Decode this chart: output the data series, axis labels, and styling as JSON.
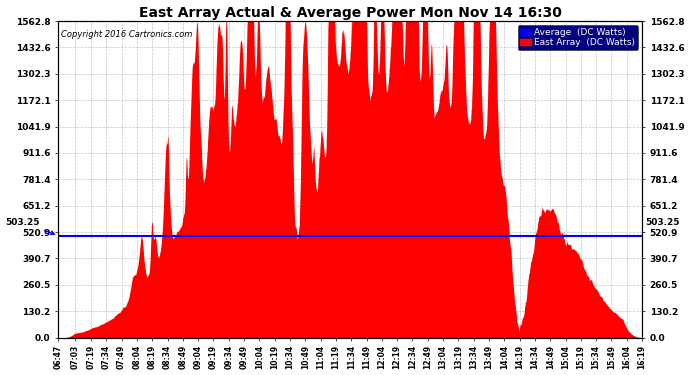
{
  "title": "East Array Actual & Average Power Mon Nov 14 16:30",
  "copyright": "Copyright 2016 Cartronics.com",
  "y_ticks": [
    0.0,
    130.2,
    260.5,
    390.7,
    520.9,
    651.2,
    781.4,
    911.6,
    1041.9,
    1172.1,
    1302.3,
    1432.6,
    1562.8
  ],
  "ylim": [
    0.0,
    1562.8
  ],
  "average_value": 503.25,
  "average_label": "503.25",
  "legend_avg_label": "Average  (DC Watts)",
  "legend_east_label": "East Array  (DC Watts)",
  "avg_line_color": "#0000ff",
  "fill_color": "#ff0000",
  "background_color": "#ffffff",
  "grid_color": "#aaaaaa",
  "x_labels": [
    "06:47",
    "07:03",
    "07:19",
    "07:34",
    "07:49",
    "08:04",
    "08:19",
    "08:34",
    "08:49",
    "09:04",
    "09:19",
    "09:34",
    "09:49",
    "10:04",
    "10:19",
    "10:34",
    "10:49",
    "11:04",
    "11:19",
    "11:34",
    "11:49",
    "12:04",
    "12:19",
    "12:34",
    "12:49",
    "13:04",
    "13:19",
    "13:34",
    "13:49",
    "14:04",
    "14:19",
    "14:34",
    "14:49",
    "15:04",
    "15:19",
    "15:34",
    "15:49",
    "16:04",
    "16:19"
  ]
}
